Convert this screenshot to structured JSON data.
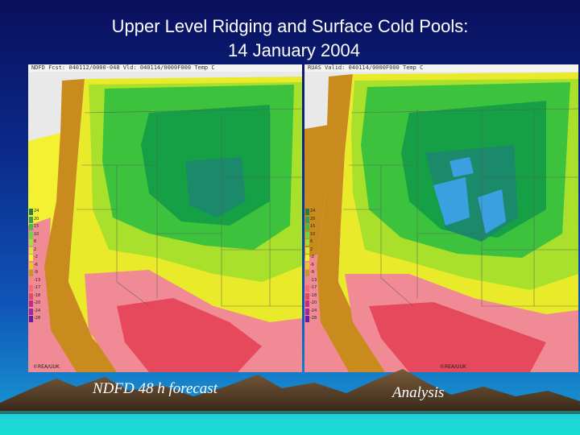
{
  "title": {
    "line1": "Upper Level Ridging and Surface Cold Pools:",
    "line2": "14 January 2004"
  },
  "maps": [
    {
      "header": "NDFD  Fcst: 040112/0000-048    Vld: 040114/0000F000    Temp C",
      "caption": "NDFD 48 h forecast",
      "credit": "©REA/UUK"
    },
    {
      "header": "RUAS  Valid: 040114/0000F000    Temp C",
      "caption": "Analysis",
      "credit": "©REA/UUK"
    }
  ],
  "legend": {
    "labels": [
      "24",
      "20",
      "15",
      "10",
      "6",
      "2",
      "-2",
      "-6",
      "-9",
      "-13",
      "-17",
      "-18",
      "-20",
      "-24",
      "-28"
    ],
    "colors": [
      "#2a7a4a",
      "#3a9a5a",
      "#4cb84c",
      "#6ed24a",
      "#9de03c",
      "#d4e83a",
      "#f5f032",
      "#e8c828",
      "#c49a22",
      "#f28a8a",
      "#f56a78",
      "#e04a6a",
      "#c82a8a",
      "#9a2aa0",
      "#6a1aa0"
    ]
  },
  "map_colors": {
    "ocean": "#f3f132",
    "coast_orange": "#c98b1e",
    "pink": "#f08b96",
    "red": "#e6485c",
    "yellow": "#e8ea2a",
    "yellow_green": "#a8e02c",
    "green": "#3cc23c",
    "dark_green": "#16a046",
    "blue_green": "#1a8a6a",
    "cold_blue": "#3aa0e0"
  }
}
